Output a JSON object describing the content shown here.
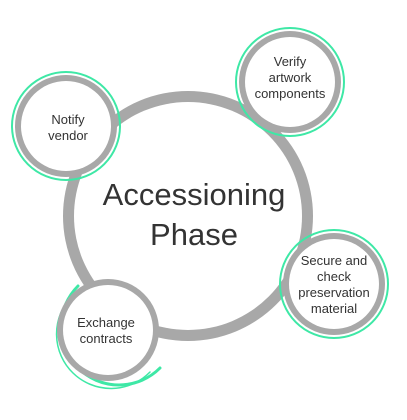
{
  "diagram": {
    "center": {
      "label": "Accessioning\nPhase"
    },
    "steps": [
      {
        "id": "notify",
        "label": "Notify\nvendor"
      },
      {
        "id": "verify",
        "label": "Verify\nartwork\ncomponents"
      },
      {
        "id": "secure",
        "label": "Secure and\ncheck\npreservation\nmaterial"
      },
      {
        "id": "exchange",
        "label": "Exchange\ncontracts"
      }
    ],
    "colors": {
      "ring": "#a8a8a8",
      "accent": "#3ee8a6",
      "fill": "#ffffff",
      "text": "#333333"
    }
  }
}
